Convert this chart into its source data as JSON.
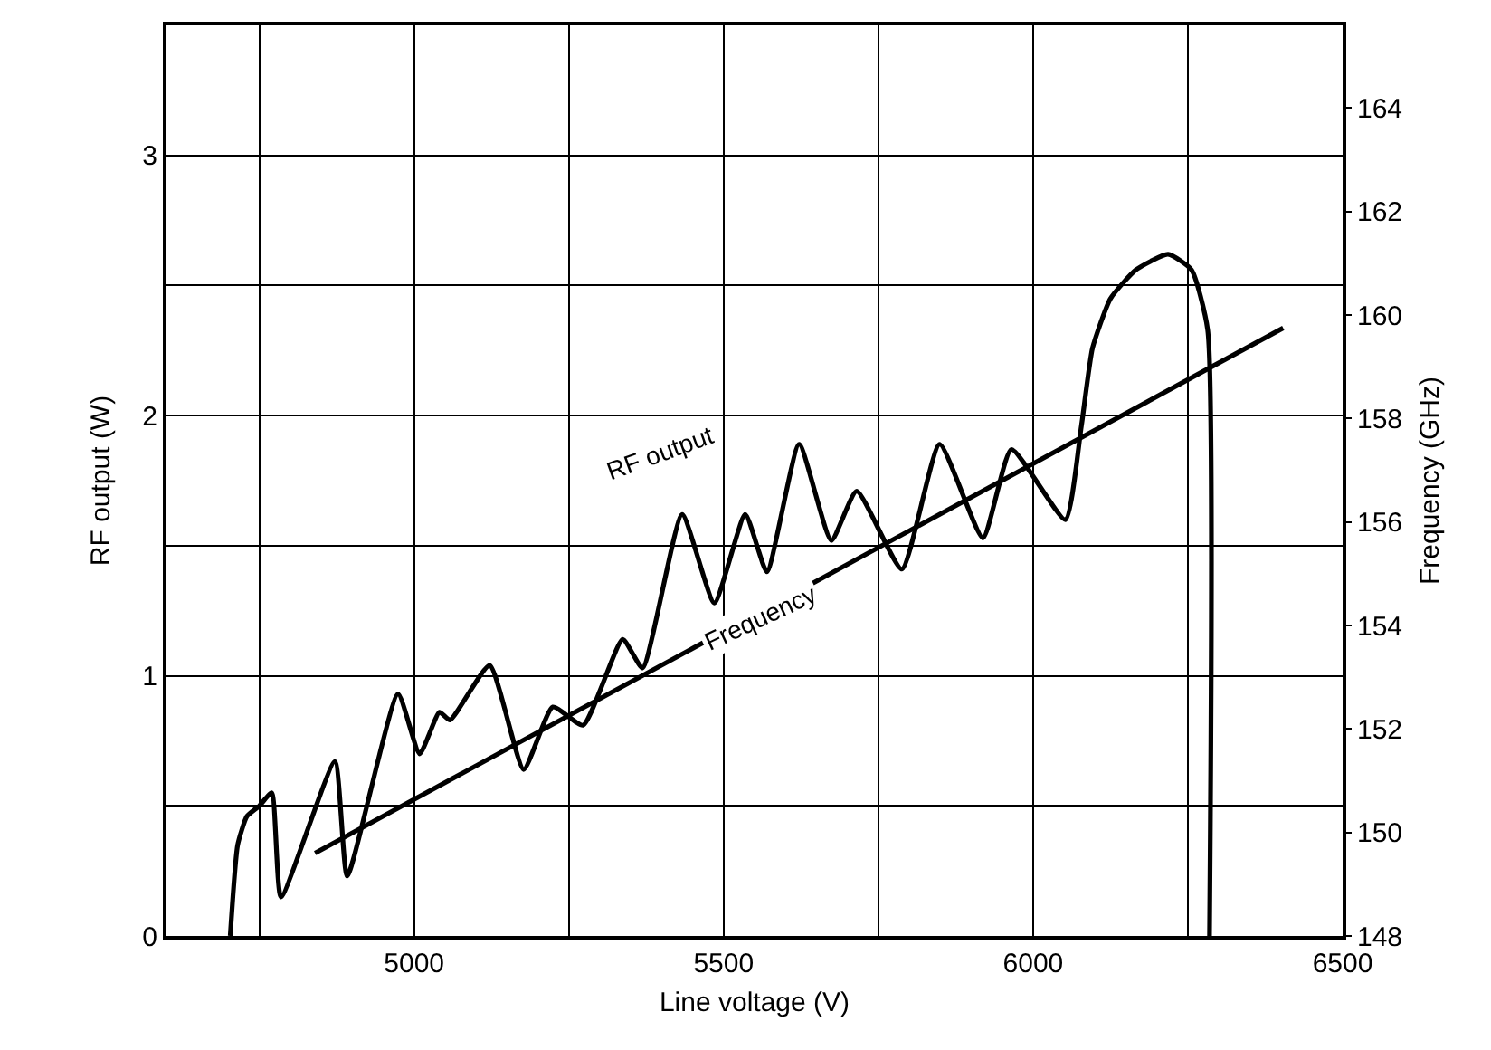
{
  "chart_data": {
    "type": "line",
    "xlabel": "Line voltage (V)",
    "ylabel": "RF output (W)",
    "y2label": "Frequency (GHz)",
    "xlim": [
      4600,
      6500
    ],
    "xticks": [
      {
        "value": 4750,
        "label": null
      },
      5000,
      {
        "value": 5250,
        "label": null
      },
      5500,
      {
        "value": 5750,
        "label": null
      },
      6000,
      {
        "value": 6250,
        "label": null
      },
      6500
    ],
    "ylim": [
      0,
      3.5
    ],
    "yticks": [
      0,
      {
        "value": 0.5,
        "label": null
      },
      1,
      {
        "value": 1.5,
        "label": null
      },
      2,
      {
        "value": 2.5,
        "label": null
      },
      3,
      {
        "value": 3.5,
        "label": null
      }
    ],
    "y2lim": [
      148,
      165.6
    ],
    "y2ticks": [
      148,
      150,
      152,
      154,
      156,
      158,
      160,
      162,
      164
    ],
    "grid": true,
    "legend": false,
    "marker": "none",
    "line_style": "solid",
    "series": [
      {
        "name": "RF output",
        "color": "#000000",
        "x": [
          4703,
          4715,
          4730,
          4750,
          4770,
          4785,
          4872,
          4892,
          4974,
          5009,
          5041,
          5058,
          5122,
          5177,
          5224,
          5273,
          5337,
          5369,
          5433,
          5485,
          5535,
          5570,
          5622,
          5674,
          5715,
          5788,
          5849,
          5919,
          5965,
          6052,
          6078,
          6096,
          6125,
          6166,
          6218,
          6256,
          6282,
          6285
        ],
        "values": [
          0,
          0.35,
          0.46,
          0.5,
          0.55,
          0.15,
          0.67,
          0.23,
          0.93,
          0.7,
          0.86,
          0.83,
          1.04,
          0.64,
          0.88,
          0.81,
          1.14,
          1.03,
          1.62,
          1.28,
          1.62,
          1.4,
          1.89,
          1.52,
          1.71,
          1.41,
          1.89,
          1.53,
          1.87,
          1.6,
          1.96,
          2.26,
          2.45,
          2.56,
          2.62,
          2.56,
          2.33,
          0
        ]
      },
      {
        "name": "Frequency",
        "color": "#000000",
        "axis": "y2",
        "x": [
          4840,
          6404
        ],
        "values": [
          149.6,
          159.75
        ]
      }
    ]
  }
}
